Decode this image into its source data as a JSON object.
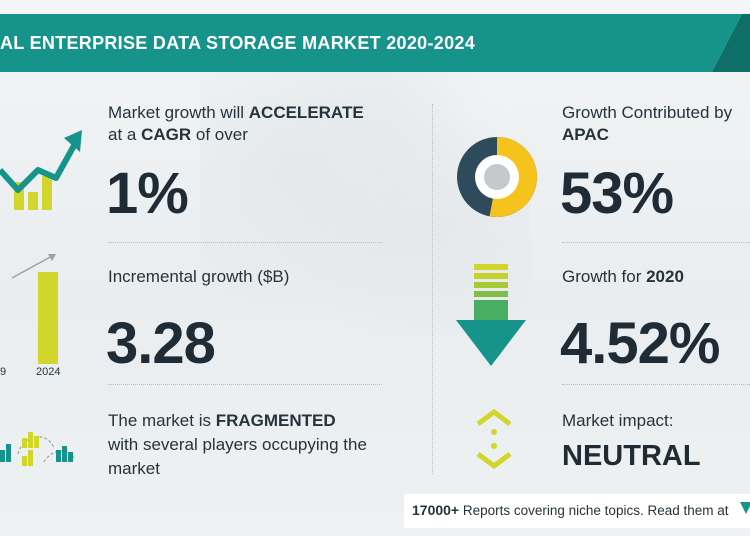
{
  "banner": {
    "title": "AL ENTERPRISE DATA STORAGE MARKET 2020-2024"
  },
  "left": {
    "cagr": {
      "label_line1_prefix": "Market growth will ",
      "label_line1_emph": "ACCELERATE",
      "label_line2_prefix": "at a ",
      "label_line2_emph": "CAGR",
      "label_line2_suffix": " of over",
      "value": "1%"
    },
    "incremental": {
      "label": "Incremental growth ($B)",
      "value": "3.28",
      "chart_axis_labels": [
        "9",
        "2024"
      ]
    },
    "market": {
      "line1_prefix": "The market is ",
      "line1_emph": "FRAGMENTED",
      "line2": "with several players occupying the",
      "line3": "market"
    }
  },
  "right": {
    "apac": {
      "label_line1": "Growth Contributed by",
      "label_line2": "APAC",
      "value": "53%",
      "donut_share": 0.53
    },
    "growth2020": {
      "label_prefix": "Growth for ",
      "label_emph": "2020",
      "value": "4.52%"
    },
    "impact": {
      "label": "Market impact:",
      "value": "NEUTRAL"
    }
  },
  "footer": {
    "count": "17000+",
    "text": " Reports covering niche topics. Read them at"
  },
  "colors": {
    "teal": "#16938a",
    "dark_teal": "#0e6f68",
    "lime": "#d2d62a",
    "yellow": "#f6c21c",
    "navy": "#2f4a5a",
    "text": "#1f2c35"
  }
}
